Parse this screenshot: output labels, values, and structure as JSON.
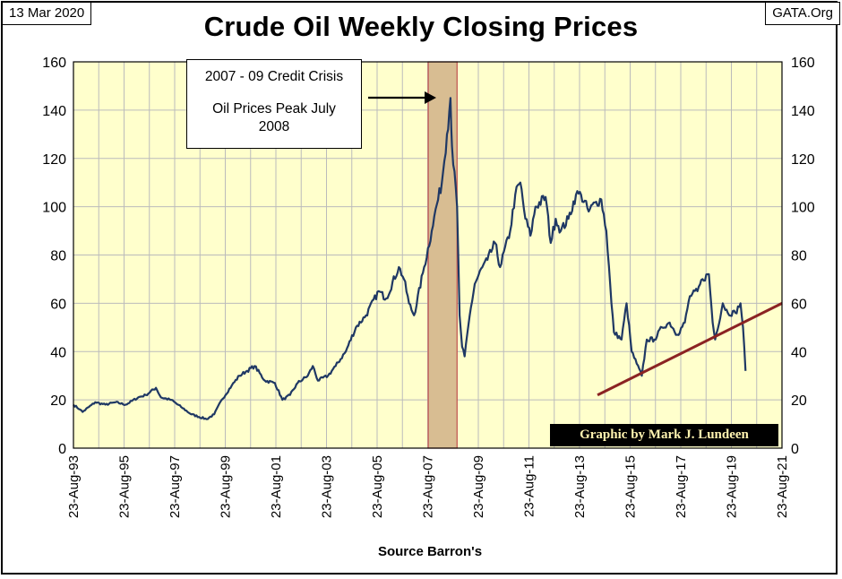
{
  "header": {
    "date": "13 Mar 2020",
    "source_tag": "GATA.Org"
  },
  "annotation": {
    "line1": "2007 - 09 Credit Crisis",
    "line2": "Oil Prices Peak July 2008"
  },
  "credit": "Graphic by Mark J. Lundeen",
  "colors": {
    "plot_background": "#ffffcc",
    "price_line": "#1f3864",
    "trend_line": "#8b2323",
    "crisis_band": "#d8bd92",
    "crisis_border": "#c0504d",
    "grid": "#bbbbbb",
    "credit_text": "#fff3b0"
  },
  "chart_data": {
    "type": "line",
    "title": "Crude Oil Weekly Closing Prices",
    "xlabel": "Source Barron's",
    "ylabel": "",
    "ylim": [
      0,
      160
    ],
    "yticks": [
      "0",
      "20",
      "40",
      "60",
      "80",
      "100",
      "120",
      "140",
      "160"
    ],
    "xlim": [
      1993.64,
      2021.64
    ],
    "xticks": [
      "23-Aug-93",
      "23-Aug-95",
      "23-Aug-97",
      "23-Aug-99",
      "23-Aug-01",
      "23-Aug-03",
      "23-Aug-05",
      "23-Aug-07",
      "23-Aug-09",
      "23-Aug-11",
      "23-Aug-13",
      "23-Aug-15",
      "23-Aug-17",
      "23-Aug-19",
      "23-Aug-21"
    ],
    "grid": true,
    "right_axis": true,
    "series": [
      {
        "x": [
          1993.64,
          1993.9,
          1994.0,
          1994.5,
          1994.9,
          1995.3,
          1995.7,
          1996.2,
          1996.5,
          1996.9,
          1997.1,
          1997.5,
          1997.9,
          1998.3,
          1998.9,
          1999.2,
          1999.5,
          1999.9,
          2000.2,
          2000.5,
          2000.8,
          2001.2,
          2001.6,
          2001.9,
          2002.2,
          2002.5,
          2002.9,
          2003.1,
          2003.3,
          2003.7,
          2004.0,
          2004.4,
          2004.8,
          2005.2,
          2005.7,
          2006.0,
          2006.5,
          2006.7,
          2006.9,
          2007.1,
          2007.5,
          2007.8,
          2007.9,
          2008.2,
          2008.4,
          2008.54,
          2008.6,
          2008.8,
          2008.9,
          2009.0,
          2009.1,
          2009.3,
          2009.5,
          2009.8,
          2010.0,
          2010.3,
          2010.5,
          2010.9,
          2011.1,
          2011.3,
          2011.5,
          2011.7,
          2011.9,
          2012.3,
          2012.5,
          2012.7,
          2012.9,
          2013.2,
          2013.5,
          2013.7,
          2014.0,
          2014.3,
          2014.5,
          2014.7,
          2014.9,
          2015.0,
          2015.3,
          2015.5,
          2015.7,
          2015.9,
          2016.1,
          2016.3,
          2016.6,
          2016.9,
          2017.2,
          2017.5,
          2017.8,
          2018.0,
          2018.3,
          2018.5,
          2018.75,
          2018.9,
          2019.0,
          2019.3,
          2019.5,
          2019.8,
          2020.0,
          2020.1,
          2020.2
        ],
        "values": [
          18,
          16,
          15,
          19,
          18,
          19,
          18,
          21,
          22,
          25,
          21,
          20,
          17,
          14,
          12,
          14,
          20,
          26,
          30,
          32,
          34,
          28,
          27,
          20,
          22,
          27,
          30,
          34,
          28,
          30,
          34,
          40,
          50,
          55,
          65,
          62,
          75,
          70,
          60,
          55,
          75,
          90,
          96,
          110,
          130,
          145,
          125,
          100,
          55,
          42,
          38,
          55,
          68,
          75,
          78,
          85,
          75,
          90,
          105,
          110,
          95,
          88,
          100,
          104,
          85,
          95,
          90,
          95,
          105,
          105,
          98,
          102,
          103,
          90,
          60,
          48,
          45,
          60,
          40,
          35,
          30,
          45,
          45,
          50,
          52,
          47,
          52,
          63,
          65,
          70,
          72,
          52,
          45,
          60,
          56,
          56,
          60,
          50,
          32
        ]
      }
    ],
    "trend_line": {
      "x": [
        2014.35,
        2021.64
      ],
      "values": [
        22,
        60
      ]
    },
    "shaded_period": {
      "x": [
        2007.66,
        2008.8
      ]
    }
  }
}
